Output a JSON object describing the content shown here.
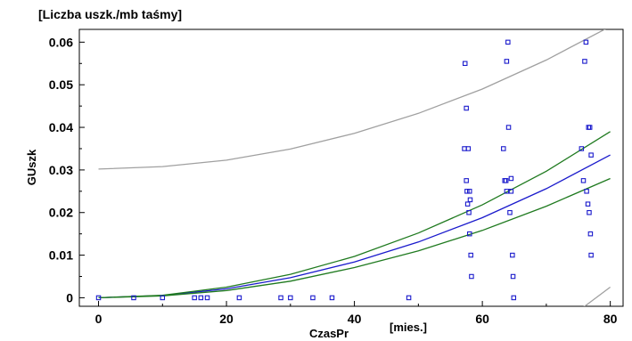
{
  "chart_data": {
    "type": "scatter",
    "title": "",
    "y_unit_label": "[Liczba uszk./mb taśmy]",
    "xlabel": "CzasPr",
    "x_unit_label": "[mies.]",
    "ylabel": "GUszk",
    "xlim": [
      -3,
      82
    ],
    "ylim": [
      -0.002,
      0.063
    ],
    "x_ticks": [
      0,
      20,
      40,
      60,
      80
    ],
    "x_tick_labels": [
      "0",
      "20",
      "40",
      "60",
      "80"
    ],
    "y_ticks": [
      0,
      0.01,
      0.02,
      0.03,
      0.04,
      0.05,
      0.06
    ],
    "y_tick_labels": [
      "0",
      "0.01",
      "0.02",
      "0.03",
      "0.04",
      "0.05",
      "0.06"
    ],
    "grid": false,
    "colors": {
      "points": "#1a1acc",
      "fit": "#1a1acc",
      "confidence": "#1f7a1f",
      "prediction": "#a0a0a0",
      "axes": "#000000"
    },
    "series": [
      {
        "kind": "points",
        "x": [
          0,
          5.5,
          10,
          15,
          16,
          17,
          22,
          28.5,
          30,
          33.5,
          36.5,
          48.5,
          57.2,
          57.3,
          57.5,
          57.5,
          57.6,
          57.7,
          57.8,
          57.9,
          58,
          58,
          58.1,
          58.2,
          58.3,
          63.3,
          63.5,
          63.7,
          63.8,
          63.8,
          64,
          64,
          64.1,
          64.3,
          64.5,
          64.5,
          64.7,
          64.8,
          64.9,
          75.5,
          75.8,
          76,
          76.2,
          76.3,
          76.5,
          76.6,
          76.7,
          76.8,
          76.9,
          77,
          77
        ],
        "y": [
          0,
          0,
          0,
          0,
          0,
          0,
          0,
          0,
          0,
          0,
          0,
          0,
          0.035,
          0.055,
          0.0445,
          0.0275,
          0.025,
          0.022,
          0.035,
          0.02,
          0.015,
          0.025,
          0.023,
          0.01,
          0.005,
          0.035,
          0.0275,
          0.0275,
          0.025,
          0.0555,
          0.064,
          0.06,
          0.04,
          0.02,
          0.025,
          0.028,
          0.01,
          0.005,
          0.0,
          0.035,
          0.0275,
          0.0555,
          0.06,
          0.025,
          0.022,
          0.04,
          0.02,
          0.04,
          0.015,
          0.0335,
          0.01
        ]
      },
      {
        "kind": "fit",
        "x": [
          0,
          10,
          20,
          30,
          40,
          50,
          60,
          70,
          80
        ],
        "y": [
          0,
          0.00052,
          0.0021,
          0.0047,
          0.0084,
          0.0131,
          0.0188,
          0.0256,
          0.0335
        ]
      },
      {
        "kind": "confidence-upper",
        "x": [
          0,
          10,
          20,
          30,
          40,
          50,
          60,
          70,
          80
        ],
        "y": [
          0,
          0.0006,
          0.0025,
          0.0055,
          0.0097,
          0.0152,
          0.0218,
          0.0297,
          0.039
        ]
      },
      {
        "kind": "confidence-lower",
        "x": [
          0,
          10,
          20,
          30,
          40,
          50,
          60,
          70,
          80
        ],
        "y": [
          0,
          0.00044,
          0.0017,
          0.0039,
          0.0071,
          0.011,
          0.0158,
          0.0215,
          0.028
        ]
      },
      {
        "kind": "prediction-upper",
        "x": [
          0,
          10,
          20,
          30,
          40,
          50,
          60,
          70,
          80
        ],
        "y": [
          0.0302,
          0.0308,
          0.0323,
          0.0349,
          0.0386,
          0.0433,
          0.049,
          0.0558,
          0.0637
        ]
      },
      {
        "kind": "prediction-lower",
        "x": [
          72,
          76,
          80
        ],
        "y": [
          -0.0045,
          -0.002,
          0.0025
        ]
      }
    ]
  }
}
